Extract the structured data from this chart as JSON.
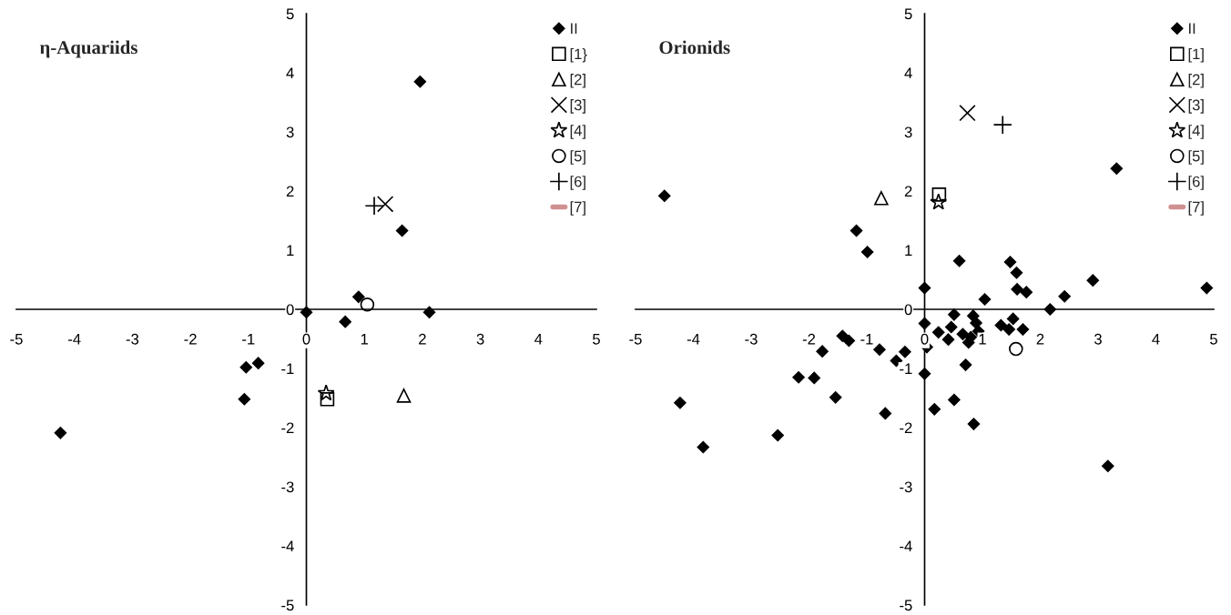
{
  "chart_data": [
    {
      "type": "scatter",
      "title": "η-Aquariids",
      "xlim": [
        -5,
        5
      ],
      "ylim": [
        -5,
        5
      ],
      "xticks": [
        -5,
        -4,
        -3,
        -2,
        -1,
        0,
        1,
        2,
        3,
        4,
        5
      ],
      "yticks": [
        -5,
        -4,
        -3,
        -2,
        -1,
        0,
        1,
        2,
        3,
        4,
        5
      ],
      "grid": false,
      "legend": "top right",
      "series": [
        {
          "name": "II",
          "color": "#000000",
          "marker": "diamond",
          "x": [
            1.96,
            1.65,
            0.9,
            0.0,
            0.67,
            2.12,
            -1.04,
            -0.83,
            -1.07,
            -4.24
          ],
          "values": [
            3.85,
            1.33,
            0.21,
            -0.05,
            -0.21,
            -0.05,
            -0.98,
            -0.91,
            -1.52,
            -2.09
          ]
        },
        {
          "name": "[1}",
          "color": "#000000",
          "marker": "square",
          "x": [
            0.36
          ],
          "values": [
            -1.52
          ]
        },
        {
          "name": "[2]",
          "color": "#000000",
          "marker": "triangle",
          "x": [
            1.68
          ],
          "values": [
            -1.46
          ]
        },
        {
          "name": "[3]",
          "color": "#000000",
          "marker": "x",
          "x": [
            1.36
          ],
          "values": [
            1.78
          ]
        },
        {
          "name": "[4]",
          "color": "#000000",
          "marker": "star",
          "x": [
            0.34
          ],
          "values": [
            -1.42
          ]
        },
        {
          "name": "[5]",
          "color": "#000000",
          "marker": "circle",
          "x": [
            1.05
          ],
          "values": [
            0.08
          ]
        },
        {
          "name": "[6]",
          "color": "#000000",
          "marker": "cross",
          "x": [
            1.17
          ],
          "values": [
            1.75
          ]
        },
        {
          "name": "[7]",
          "color": "#d09090",
          "marker": "none",
          "line_style": "solid"
        }
      ]
    },
    {
      "type": "scatter",
      "title": "Orionids",
      "xlim": [
        -5,
        5
      ],
      "ylim": [
        -5,
        5
      ],
      "xticks": [
        -5,
        -4,
        -3,
        -2,
        -1,
        0,
        1,
        2,
        3,
        4,
        5
      ],
      "yticks": [
        -5,
        -4,
        -3,
        -2,
        -1,
        0,
        1,
        2,
        3,
        4,
        5
      ],
      "grid": false,
      "legend": "top right",
      "series": [
        {
          "name": "II",
          "color": "#000000",
          "marker": "diamond",
          "x": [
            -4.5,
            -1.18,
            -0.99,
            -1.42,
            -1.31,
            -1.77,
            -0.78,
            -0.34,
            -0.49,
            -2.18,
            -1.91,
            -1.54,
            -0.68,
            -4.23,
            -3.83,
            -2.54,
            0.0,
            0.0,
            0.24,
            0.51,
            0.46,
            0.41,
            0.04,
            0.0,
            0.17,
            0.51,
            0.71,
            0.85,
            0.6,
            1.04,
            0.84,
            0.89,
            0.93,
            0.66,
            0.76,
            0.8,
            1.32,
            1.46,
            1.53,
            1.7,
            1.48,
            1.59,
            1.6,
            1.76,
            2.17,
            2.42,
            2.91,
            3.32,
            4.88,
            3.17
          ],
          "values": [
            1.92,
            1.33,
            0.97,
            -0.45,
            -0.53,
            -0.71,
            -0.68,
            -0.72,
            -0.87,
            -1.15,
            -1.16,
            -1.49,
            -1.76,
            -1.58,
            -2.33,
            -2.13,
            0.36,
            -0.24,
            -0.39,
            -0.09,
            -0.3,
            -0.51,
            -0.64,
            -1.09,
            -1.69,
            -1.53,
            -0.94,
            -1.94,
            0.82,
            0.17,
            -0.11,
            -0.23,
            -0.37,
            -0.42,
            -0.56,
            -0.47,
            -0.27,
            -0.34,
            -0.16,
            -0.34,
            0.8,
            0.62,
            0.34,
            0.29,
            0.0,
            0.22,
            0.49,
            2.38,
            0.36,
            -2.65
          ]
        },
        {
          "name": "[1]",
          "color": "#000000",
          "marker": "square",
          "x": [
            0.25
          ],
          "values": [
            1.94
          ]
        },
        {
          "name": "[2]",
          "color": "#000000",
          "marker": "triangle",
          "x": [
            -0.75
          ],
          "values": [
            1.88
          ]
        },
        {
          "name": "[3]",
          "color": "#000000",
          "marker": "x",
          "x": [
            0.74
          ],
          "values": [
            3.32
          ]
        },
        {
          "name": "[4]",
          "color": "#000000",
          "marker": "star",
          "x": [
            0.24
          ],
          "values": [
            1.81
          ]
        },
        {
          "name": "[5]",
          "color": "#000000",
          "marker": "circle",
          "x": [
            1.58
          ],
          "values": [
            -0.67
          ]
        },
        {
          "name": "[6]",
          "color": "#000000",
          "marker": "cross",
          "x": [
            1.35
          ],
          "values": [
            3.12
          ]
        },
        {
          "name": "[7]",
          "color": "#d09090",
          "marker": "none",
          "line_style": "solid"
        }
      ]
    }
  ]
}
